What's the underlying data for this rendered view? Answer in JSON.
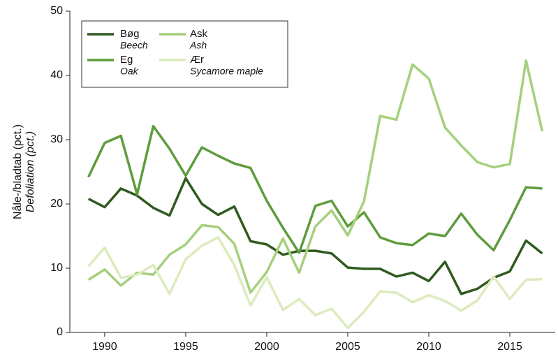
{
  "chart_data": {
    "type": "line",
    "y_label": "Nåle-/bladtab (pct.)",
    "y_label_en": "Defoliation (pct.)",
    "x": [
      1989,
      1990,
      1991,
      1992,
      1993,
      1994,
      1995,
      1996,
      1997,
      1998,
      1999,
      2000,
      2001,
      2002,
      2003,
      2004,
      2005,
      2006,
      2007,
      2008,
      2009,
      2010,
      2011,
      2012,
      2013,
      2014,
      2015,
      2016,
      2017
    ],
    "series": [
      {
        "name": "Bøg",
        "name_en": "Beech",
        "color": "#2f5a1f",
        "values": [
          20.8,
          19.5,
          22.4,
          21.3,
          19.4,
          18.2,
          24.0,
          20.0,
          18.3,
          19.6,
          14.2,
          13.7,
          12.1,
          12.7,
          12.7,
          12.3,
          10.1,
          9.9,
          9.9,
          8.7,
          9.3,
          8.0,
          11.0,
          6.0,
          6.8,
          8.5,
          9.5,
          14.3,
          12.3
        ]
      },
      {
        "name": "Eg",
        "name_en": "Oak",
        "color": "#5e9c3c",
        "values": [
          24.2,
          29.5,
          30.6,
          21.5,
          32.1,
          28.6,
          24.4,
          28.8,
          27.5,
          26.3,
          25.6,
          20.5,
          16.3,
          12.4,
          19.7,
          20.5,
          16.5,
          18.7,
          14.8,
          13.9,
          13.6,
          15.4,
          15.0,
          18.5,
          15.2,
          12.8,
          17.5,
          22.6,
          22.4
        ]
      },
      {
        "name": "Ask",
        "name_en": "Ash",
        "color": "#a5d07c",
        "values": [
          8.2,
          9.8,
          7.3,
          9.3,
          9.0,
          12.1,
          13.7,
          16.7,
          16.4,
          13.8,
          6.2,
          9.4,
          14.6,
          9.3,
          16.5,
          19.0,
          15.1,
          20.4,
          33.7,
          33.1,
          41.7,
          39.5,
          31.9,
          29.1,
          26.5,
          25.7,
          26.2,
          42.3,
          31.3
        ]
      },
      {
        "name": "Ær",
        "name_en": "Sycamore maple",
        "color": "#dcebbd",
        "values": [
          10.3,
          13.2,
          8.5,
          9.0,
          10.5,
          6.0,
          11.4,
          13.5,
          14.8,
          10.5,
          4.2,
          8.6,
          3.5,
          5.2,
          2.7,
          3.7,
          0.7,
          3.2,
          6.4,
          6.2,
          4.7,
          5.8,
          4.9,
          3.4,
          5.0,
          8.7,
          5.2,
          8.2,
          8.3
        ]
      }
    ],
    "xlim": [
      1987.85,
      2017.8
    ],
    "xticks": [
      1990,
      1995,
      2000,
      2005,
      2010,
      2015
    ],
    "ylim": [
      0,
      50
    ],
    "yticks": [
      0,
      10,
      20,
      30,
      40,
      50
    ],
    "grid": false,
    "legend": "upper left"
  }
}
